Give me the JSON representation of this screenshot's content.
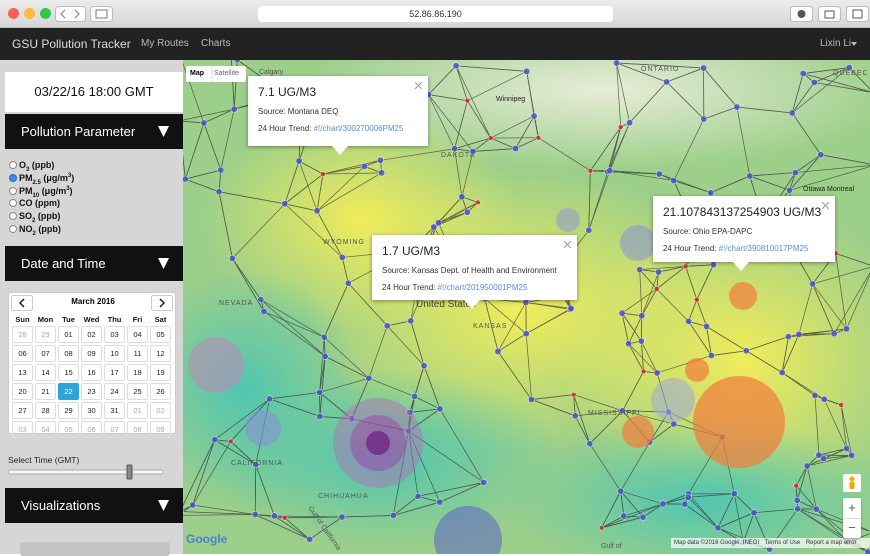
{
  "browser": {
    "url": "52.86.86.190"
  },
  "navbar": {
    "brand": "GSU Pollution Tracker",
    "links": [
      "My Routes",
      "Charts"
    ],
    "user": "Lixin Li"
  },
  "sidebar": {
    "timestamp": "03/22/16 18:00 GMT",
    "parameter_heading": "Pollution Parameter",
    "parameters": [
      [
        {
          "t": "O"
        },
        {
          "sub": "3"
        },
        {
          "t": " (ppb)"
        }
      ],
      [
        {
          "t": "PM"
        },
        {
          "sub": "2.5"
        },
        {
          "t": " (μg/m"
        },
        {
          "sup": "3"
        },
        {
          "t": ")"
        }
      ],
      [
        {
          "t": "PM"
        },
        {
          "sub": "10"
        },
        {
          "t": " (μg/m"
        },
        {
          "sup": "3"
        },
        {
          "t": ")"
        }
      ],
      [
        {
          "t": "CO (ppm)"
        }
      ],
      [
        {
          "t": "SO"
        },
        {
          "sub": "2"
        },
        {
          "t": " (ppb)"
        }
      ],
      [
        {
          "t": "NO"
        },
        {
          "sub": "2"
        },
        {
          "t": " (ppb)"
        }
      ]
    ],
    "selected_parameter": 1,
    "datetime_heading": "Date and Time",
    "calendar": {
      "month": "March 2016",
      "weekdays": [
        "Sun",
        "Mon",
        "Tue",
        "Wed",
        "Thu",
        "Fri",
        "Sat"
      ],
      "weeks": [
        [
          "28",
          "29",
          "01",
          "02",
          "03",
          "04",
          "05"
        ],
        [
          "06",
          "07",
          "08",
          "09",
          "10",
          "11",
          "12"
        ],
        [
          "13",
          "14",
          "15",
          "16",
          "17",
          "18",
          "19"
        ],
        [
          "20",
          "21",
          "22",
          "23",
          "24",
          "25",
          "26"
        ],
        [
          "27",
          "28",
          "29",
          "30",
          "31",
          "01",
          "02"
        ],
        [
          "03",
          "04",
          "05",
          "06",
          "07",
          "08",
          "09"
        ]
      ],
      "outside_month_cells": [
        [
          0,
          0
        ],
        [
          0,
          1
        ],
        [
          4,
          5
        ],
        [
          4,
          6
        ],
        [
          5,
          0
        ],
        [
          5,
          1
        ],
        [
          5,
          2
        ],
        [
          5,
          3
        ],
        [
          5,
          4
        ],
        [
          5,
          5
        ],
        [
          5,
          6
        ]
      ],
      "selected_cell": [
        3,
        2
      ]
    },
    "time_label": "Select Time (GMT)",
    "visualizations_heading": "Visualizations"
  },
  "map": {
    "type_buttons": [
      "Map",
      "Satellite"
    ],
    "labels": [
      "Calgary",
      "ONTARIO",
      "QUÉBEC",
      "Winnipeg",
      "Ottawa",
      "Montreal",
      "NEVADA",
      "United States",
      "KANSAS",
      "CALIFORNIA",
      "MISSISSIPPI",
      "Gulf of California",
      "CHIHUAHUA",
      "DAKOTA",
      "WYOMING",
      "Gulf of"
    ],
    "popups": [
      {
        "value": "7.1 UG/M3",
        "source": "Source: Montana DEQ",
        "trend_label": "24 Hour Trend:",
        "trend_link": "#!/chart/300270006PM25"
      },
      {
        "value": "1.7 UG/M3",
        "source": "Source: Kansas Dept. of Health and Environment",
        "trend_label": "24 Hour Trend:",
        "trend_link": "#!/chart/201950001PM25"
      },
      {
        "value": "21.107843137254903 UG/M3",
        "source": "Source: Ohio EPA-DAPC",
        "trend_label": "24 Hour Trend:",
        "trend_link": "#!/chart/390810017PM25"
      }
    ],
    "logo": "Google",
    "attribution": [
      "Map data ©2016 Google, INEGI",
      "Terms of Use",
      "Report a map error"
    ],
    "zoom": [
      "+",
      "−"
    ]
  }
}
